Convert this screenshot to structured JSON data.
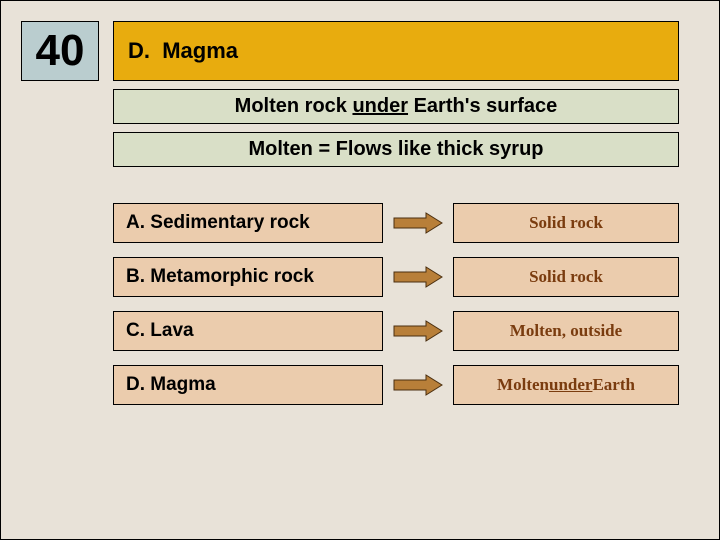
{
  "question_number": "40",
  "correct": {
    "letter": "D.",
    "text": "Magma"
  },
  "definition": {
    "pre": "Molten rock ",
    "underlined": "under",
    "post": " Earth's surface"
  },
  "note": "Molten = Flows like thick syrup",
  "arrow": {
    "fill": "#b87f39",
    "stroke": "#4a2f10"
  },
  "options": [
    {
      "letter": "A.",
      "label": "Sedimentary rock",
      "desc": "Solid rock"
    },
    {
      "letter": "B.",
      "label": "Metamorphic rock",
      "desc": "Solid rock"
    },
    {
      "letter": "C.",
      "label": "Lava",
      "desc": "Molten, outside"
    },
    {
      "letter": "D.",
      "label": "Magma",
      "desc_pre": "Molten ",
      "desc_under": "under",
      "desc_post": " Earth"
    }
  ]
}
